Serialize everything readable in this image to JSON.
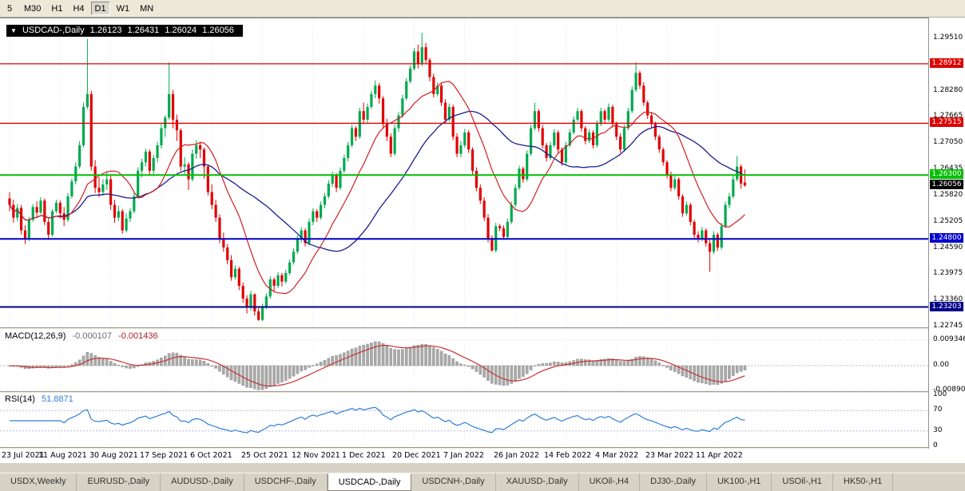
{
  "toolbar": {
    "timeframes": [
      {
        "label": "5",
        "active": false
      },
      {
        "label": "M30",
        "active": false
      },
      {
        "label": "H1",
        "active": false
      },
      {
        "label": "H4",
        "active": false
      },
      {
        "label": "D1",
        "active": true
      },
      {
        "label": "W1",
        "active": false
      },
      {
        "label": "MN",
        "active": false
      }
    ]
  },
  "chart": {
    "title": {
      "marker": "▼",
      "symbol": "USDCAD-,Daily",
      "open": "1.26123",
      "high": "1.26431",
      "low": "1.26024",
      "close": "1.26056"
    }
  },
  "macd": {
    "title": "MACD(12,26,9)",
    "value_main": "-0.000107",
    "value_signal": "-0.001436",
    "axis": [
      "0.009346",
      "0.00",
      "-0.008902"
    ]
  },
  "rsi": {
    "title": "RSI(14)",
    "value": "51.8871",
    "axis": [
      "100",
      "70",
      "30",
      "0"
    ]
  },
  "tabs": [
    {
      "label": "USDX,Weekly",
      "active": false
    },
    {
      "label": "EURUSD-,Daily",
      "active": false
    },
    {
      "label": "AUDUSD-,Daily",
      "active": false
    },
    {
      "label": "USDCHF-,Daily",
      "active": false
    },
    {
      "label": "USDCAD-,Daily",
      "active": true
    },
    {
      "label": "USDCNH-,Daily",
      "active": false
    },
    {
      "label": "XAUUSD-,Daily",
      "active": false
    },
    {
      "label": "UKOil-,H4",
      "active": false
    },
    {
      "label": "DJ30-,Daily",
      "active": false
    },
    {
      "label": "UK100-,H1",
      "active": false
    },
    {
      "label": "USOil-,H1",
      "active": false
    },
    {
      "label": "HK50-,H1",
      "active": false
    }
  ],
  "chart_data": {
    "type": "candlestick",
    "symbol": "USDCAD-",
    "timeframe": "Daily",
    "last_ohlc": {
      "open": 1.26123,
      "high": 1.26431,
      "low": 1.26024,
      "close": 1.26056
    },
    "style": {
      "bull": "#00a94f",
      "bear": "#e00000",
      "ma_fast": "#d02020",
      "ma_slow": "#1c1c8f",
      "macd_hist": "#a9a9a9",
      "macd_signal": "#c83232",
      "rsi_line": "#2f7ed8",
      "grid": "#e8e8e8"
    },
    "y_axis_ticks": [
      "1.29510",
      "1.28280",
      "1.27665",
      "1.27050",
      "1.26435",
      "1.25820",
      "1.25205",
      "1.24590",
      "1.23975",
      "1.23360",
      "1.22745"
    ],
    "levels": [
      {
        "price": 1.28912,
        "label": "1.28912",
        "color": "#dd0000",
        "width": 1.3
      },
      {
        "price": 1.27515,
        "label": "1.27515",
        "color": "#dd0000",
        "width": 1.3
      },
      {
        "price": 1.263,
        "label": "1.26300",
        "color": "#00c000",
        "width": 2
      },
      {
        "price": 1.248,
        "label": "1.24800",
        "color": "#0000cc",
        "width": 2
      },
      {
        "price": 1.23203,
        "label": "1.23203",
        "color": "#000088",
        "width": 2
      }
    ],
    "current_price": {
      "price": 1.26056,
      "label": "1.26056",
      "color": "#000000"
    },
    "macd_axis": {
      "max": 0.009346,
      "zero": 0.0,
      "min": -0.008902
    },
    "rsi_levels": [
      70,
      30
    ],
    "x_axis_dates": [
      "23 Jul 2021",
      "11 Aug 2021",
      "30 Aug 2021",
      "17 Sep 2021",
      "6 Oct 2021",
      "25 Oct 2021",
      "12 Nov 2021",
      "1 Dec 2021",
      "20 Dec 2021",
      "7 Jan 2022",
      "26 Jan 2022",
      "14 Feb 2022",
      "4 Mar 2022",
      "23 Mar 2022",
      "11 Apr 2022"
    ],
    "candles": [
      [
        1.2575,
        1.259,
        1.2545,
        1.256
      ],
      [
        1.256,
        1.2572,
        1.2518,
        1.253
      ],
      [
        1.253,
        1.2562,
        1.2522,
        1.2553
      ],
      [
        1.2553,
        1.256,
        1.249,
        1.25
      ],
      [
        1.25,
        1.2512,
        1.2468,
        1.248
      ],
      [
        1.248,
        1.2532,
        1.2475,
        1.2525
      ],
      [
        1.2525,
        1.2562,
        1.252,
        1.2555
      ],
      [
        1.2555,
        1.2568,
        1.253,
        1.2542
      ],
      [
        1.2542,
        1.2578,
        1.2538,
        1.257
      ],
      [
        1.257,
        1.2575,
        1.2512,
        1.252
      ],
      [
        1.252,
        1.2528,
        1.2478,
        1.249
      ],
      [
        1.249,
        1.255,
        1.2485,
        1.2545
      ],
      [
        1.2545,
        1.2572,
        1.254,
        1.2565
      ],
      [
        1.2565,
        1.257,
        1.2528,
        1.254
      ],
      [
        1.254,
        1.2555,
        1.251,
        1.2525
      ],
      [
        1.2525,
        1.2588,
        1.252,
        1.258
      ],
      [
        1.258,
        1.2622,
        1.2575,
        1.2615
      ],
      [
        1.2615,
        1.266,
        1.2608,
        1.265
      ],
      [
        1.265,
        1.271,
        1.2645,
        1.27
      ],
      [
        1.27,
        1.28,
        1.2695,
        1.279
      ],
      [
        1.279,
        1.2949,
        1.2785,
        1.282
      ],
      [
        1.282,
        1.2828,
        1.264,
        1.265
      ],
      [
        1.265,
        1.2665,
        1.2588,
        1.26
      ],
      [
        1.26,
        1.2625,
        1.2578,
        1.259
      ],
      [
        1.259,
        1.262,
        1.2582,
        1.2608
      ],
      [
        1.2608,
        1.2638,
        1.2595,
        1.262
      ],
      [
        1.262,
        1.2628,
        1.2548,
        1.256
      ],
      [
        1.256,
        1.2572,
        1.2518,
        1.253
      ],
      [
        1.253,
        1.2558,
        1.2522,
        1.2545
      ],
      [
        1.2545,
        1.255,
        1.2492,
        1.25
      ],
      [
        1.25,
        1.254,
        1.2495,
        1.2528
      ],
      [
        1.2528,
        1.2552,
        1.252,
        1.2545
      ],
      [
        1.2545,
        1.2588,
        1.254,
        1.258
      ],
      [
        1.258,
        1.2648,
        1.2575,
        1.264
      ],
      [
        1.264,
        1.2668,
        1.2625,
        1.266
      ],
      [
        1.266,
        1.2692,
        1.265,
        1.2685
      ],
      [
        1.2685,
        1.269,
        1.263,
        1.264
      ],
      [
        1.264,
        1.2678,
        1.2632,
        1.267
      ],
      [
        1.267,
        1.2708,
        1.266,
        1.27
      ],
      [
        1.27,
        1.275,
        1.2692,
        1.274
      ],
      [
        1.274,
        1.277,
        1.272,
        1.2765
      ],
      [
        1.2765,
        1.2895,
        1.276,
        1.282
      ],
      [
        1.282,
        1.283,
        1.274,
        1.276
      ],
      [
        1.276,
        1.2772,
        1.271,
        1.2735
      ],
      [
        1.2735,
        1.274,
        1.264,
        1.265
      ],
      [
        1.265,
        1.2672,
        1.2632,
        1.2655
      ],
      [
        1.2655,
        1.266,
        1.2595,
        1.262
      ],
      [
        1.262,
        1.269,
        1.2615,
        1.268
      ],
      [
        1.268,
        1.2712,
        1.2668,
        1.27
      ],
      [
        1.27,
        1.2708,
        1.267,
        1.269
      ],
      [
        1.269,
        1.2695,
        1.2622,
        1.265
      ],
      [
        1.265,
        1.2655,
        1.2582,
        1.259
      ],
      [
        1.259,
        1.2608,
        1.255,
        1.256
      ],
      [
        1.256,
        1.2572,
        1.252,
        1.253
      ],
      [
        1.253,
        1.2538,
        1.247,
        1.248
      ],
      [
        1.248,
        1.2495,
        1.245,
        1.246
      ],
      [
        1.246,
        1.2468,
        1.242,
        1.243
      ],
      [
        1.243,
        1.2442,
        1.2382,
        1.239
      ],
      [
        1.239,
        1.2418,
        1.2385,
        1.241
      ],
      [
        1.241,
        1.2415,
        1.236,
        1.237
      ],
      [
        1.237,
        1.2378,
        1.233,
        1.234
      ],
      [
        1.234,
        1.2348,
        1.2305,
        1.232
      ],
      [
        1.232,
        1.2358,
        1.2312,
        1.235
      ],
      [
        1.235,
        1.2352,
        1.23,
        1.231
      ],
      [
        1.231,
        1.2318,
        1.2288,
        1.229
      ],
      [
        1.229,
        1.2328,
        1.2287,
        1.232
      ],
      [
        1.232,
        1.2352,
        1.2315,
        1.2345
      ],
      [
        1.2345,
        1.2392,
        1.234,
        1.2385
      ],
      [
        1.2385,
        1.239,
        1.2358,
        1.237
      ],
      [
        1.237,
        1.2402,
        1.2365,
        1.2395
      ],
      [
        1.2395,
        1.24,
        1.2368,
        1.238
      ],
      [
        1.238,
        1.2408,
        1.2375,
        1.24
      ],
      [
        1.24,
        1.2432,
        1.2395,
        1.2425
      ],
      [
        1.2425,
        1.2458,
        1.242,
        1.245
      ],
      [
        1.245,
        1.2488,
        1.2445,
        1.248
      ],
      [
        1.248,
        1.2508,
        1.2472,
        1.25
      ],
      [
        1.25,
        1.2505,
        1.2462,
        1.247
      ],
      [
        1.247,
        1.2528,
        1.2465,
        1.252
      ],
      [
        1.252,
        1.2552,
        1.2512,
        1.2545
      ],
      [
        1.2545,
        1.255,
        1.252,
        1.253
      ],
      [
        1.253,
        1.2568,
        1.2525,
        1.256
      ],
      [
        1.256,
        1.2588,
        1.2552,
        1.258
      ],
      [
        1.258,
        1.2618,
        1.2575,
        1.261
      ],
      [
        1.261,
        1.2638,
        1.2602,
        1.263
      ],
      [
        1.263,
        1.2635,
        1.259,
        1.26
      ],
      [
        1.26,
        1.2648,
        1.2595,
        1.264
      ],
      [
        1.264,
        1.2678,
        1.2635,
        1.267
      ],
      [
        1.267,
        1.2708,
        1.2662,
        1.27
      ],
      [
        1.27,
        1.2748,
        1.2695,
        1.274
      ],
      [
        1.274,
        1.2745,
        1.271,
        1.272
      ],
      [
        1.272,
        1.2788,
        1.2715,
        1.278
      ],
      [
        1.278,
        1.28,
        1.275,
        1.276
      ],
      [
        1.276,
        1.2798,
        1.2752,
        1.279
      ],
      [
        1.279,
        1.2828,
        1.2785,
        1.282
      ],
      [
        1.282,
        1.2852,
        1.281,
        1.284
      ],
      [
        1.284,
        1.2846,
        1.2798,
        1.281
      ],
      [
        1.281,
        1.2815,
        1.2742,
        1.275
      ],
      [
        1.275,
        1.2762,
        1.271,
        1.272
      ],
      [
        1.272,
        1.2728,
        1.2672,
        1.268
      ],
      [
        1.268,
        1.2748,
        1.2675,
        1.274
      ],
      [
        1.274,
        1.2778,
        1.2732,
        1.277
      ],
      [
        1.277,
        1.2818,
        1.2765,
        1.281
      ],
      [
        1.281,
        1.2858,
        1.2805,
        1.285
      ],
      [
        1.285,
        1.2888,
        1.2845,
        1.288
      ],
      [
        1.288,
        1.2928,
        1.2875,
        1.292
      ],
      [
        1.292,
        1.2936,
        1.288,
        1.289
      ],
      [
        1.289,
        1.2964,
        1.2885,
        1.293
      ],
      [
        1.293,
        1.294,
        1.2892,
        1.29
      ],
      [
        1.29,
        1.2905,
        1.285,
        1.286
      ],
      [
        1.286,
        1.2868,
        1.2812,
        1.282
      ],
      [
        1.282,
        1.2848,
        1.2815,
        1.284
      ],
      [
        1.284,
        1.2845,
        1.2792,
        1.28
      ],
      [
        1.28,
        1.2808,
        1.2752,
        1.276
      ],
      [
        1.276,
        1.2798,
        1.2755,
        1.279
      ],
      [
        1.279,
        1.2795,
        1.2712,
        1.272
      ],
      [
        1.272,
        1.2728,
        1.2672,
        1.268
      ],
      [
        1.268,
        1.271,
        1.2672,
        1.27
      ],
      [
        1.27,
        1.2738,
        1.2695,
        1.273
      ],
      [
        1.273,
        1.2735,
        1.2682,
        1.269
      ],
      [
        1.269,
        1.2695,
        1.2632,
        1.264
      ],
      [
        1.264,
        1.2648,
        1.2592,
        1.26
      ],
      [
        1.26,
        1.2608,
        1.2562,
        1.257
      ],
      [
        1.257,
        1.2578,
        1.2522,
        1.253
      ],
      [
        1.253,
        1.2538,
        1.2472,
        1.248
      ],
      [
        1.248,
        1.2488,
        1.245,
        1.2453
      ],
      [
        1.2453,
        1.2518,
        1.2448,
        1.251
      ],
      [
        1.251,
        1.2515,
        1.2498,
        1.2505
      ],
      [
        1.2505,
        1.2512,
        1.2478,
        1.2485
      ],
      [
        1.2485,
        1.2528,
        1.248,
        1.252
      ],
      [
        1.252,
        1.2568,
        1.2515,
        1.256
      ],
      [
        1.256,
        1.2608,
        1.2555,
        1.26
      ],
      [
        1.26,
        1.2652,
        1.2595,
        1.2645
      ],
      [
        1.2645,
        1.265,
        1.2612,
        1.262
      ],
      [
        1.262,
        1.2688,
        1.2615,
        1.268
      ],
      [
        1.268,
        1.2748,
        1.2675,
        1.274
      ],
      [
        1.274,
        1.28,
        1.2735,
        1.278
      ],
      [
        1.278,
        1.2785,
        1.2732,
        1.274
      ],
      [
        1.274,
        1.2748,
        1.2692,
        1.27
      ],
      [
        1.27,
        1.2705,
        1.2662,
        1.267
      ],
      [
        1.267,
        1.2708,
        1.2665,
        1.27
      ],
      [
        1.27,
        1.2738,
        1.2695,
        1.273
      ],
      [
        1.273,
        1.2735,
        1.2682,
        1.269
      ],
      [
        1.269,
        1.2695,
        1.2652,
        1.266
      ],
      [
        1.266,
        1.2708,
        1.2655,
        1.27
      ],
      [
        1.27,
        1.2738,
        1.2695,
        1.273
      ],
      [
        1.273,
        1.2768,
        1.2725,
        1.276
      ],
      [
        1.276,
        1.2788,
        1.2755,
        1.278
      ],
      [
        1.278,
        1.2785,
        1.2732,
        1.274
      ],
      [
        1.274,
        1.2745,
        1.2702,
        1.271
      ],
      [
        1.271,
        1.2738,
        1.2705,
        1.273
      ],
      [
        1.273,
        1.2735,
        1.2692,
        1.27
      ],
      [
        1.27,
        1.2758,
        1.2695,
        1.275
      ],
      [
        1.275,
        1.2788,
        1.2745,
        1.278
      ],
      [
        1.278,
        1.2785,
        1.2752,
        1.276
      ],
      [
        1.276,
        1.2798,
        1.2755,
        1.279
      ],
      [
        1.279,
        1.2795,
        1.2742,
        1.275
      ],
      [
        1.275,
        1.2755,
        1.2712,
        1.272
      ],
      [
        1.272,
        1.2728,
        1.2682,
        1.269
      ],
      [
        1.269,
        1.2748,
        1.2685,
        1.274
      ],
      [
        1.274,
        1.2788,
        1.2735,
        1.278
      ],
      [
        1.278,
        1.2838,
        1.2775,
        1.283
      ],
      [
        1.283,
        1.2895,
        1.2825,
        1.287
      ],
      [
        1.287,
        1.2875,
        1.2832,
        1.284
      ],
      [
        1.284,
        1.2848,
        1.2792,
        1.28
      ],
      [
        1.28,
        1.2805,
        1.2762,
        1.277
      ],
      [
        1.277,
        1.2778,
        1.2742,
        1.275
      ],
      [
        1.275,
        1.2755,
        1.2712,
        1.272
      ],
      [
        1.272,
        1.2725,
        1.2682,
        1.269
      ],
      [
        1.269,
        1.2695,
        1.2652,
        1.266
      ],
      [
        1.266,
        1.2665,
        1.2622,
        1.263
      ],
      [
        1.263,
        1.2638,
        1.2592,
        1.26
      ],
      [
        1.26,
        1.2628,
        1.2595,
        1.262
      ],
      [
        1.262,
        1.2625,
        1.2572,
        1.258
      ],
      [
        1.258,
        1.2585,
        1.2532,
        1.254
      ],
      [
        1.254,
        1.2568,
        1.2535,
        1.256
      ],
      [
        1.256,
        1.2565,
        1.2512,
        1.252
      ],
      [
        1.252,
        1.2525,
        1.2482,
        1.249
      ],
      [
        1.249,
        1.2498,
        1.2472,
        1.248
      ],
      [
        1.248,
        1.2508,
        1.2475,
        1.25
      ],
      [
        1.25,
        1.2505,
        1.2462,
        1.247
      ],
      [
        1.247,
        1.2478,
        1.2403,
        1.245
      ],
      [
        1.245,
        1.2498,
        1.2445,
        1.249
      ],
      [
        1.249,
        1.2495,
        1.2452,
        1.246
      ],
      [
        1.246,
        1.2518,
        1.2455,
        1.251
      ],
      [
        1.251,
        1.2568,
        1.2505,
        1.256
      ],
      [
        1.256,
        1.2588,
        1.2552,
        1.258
      ],
      [
        1.258,
        1.2628,
        1.2575,
        1.262
      ],
      [
        1.262,
        1.2675,
        1.2615,
        1.265
      ],
      [
        1.265,
        1.2655,
        1.2598,
        1.261
      ],
      [
        1.26123,
        1.26431,
        1.26024,
        1.26056
      ]
    ]
  }
}
